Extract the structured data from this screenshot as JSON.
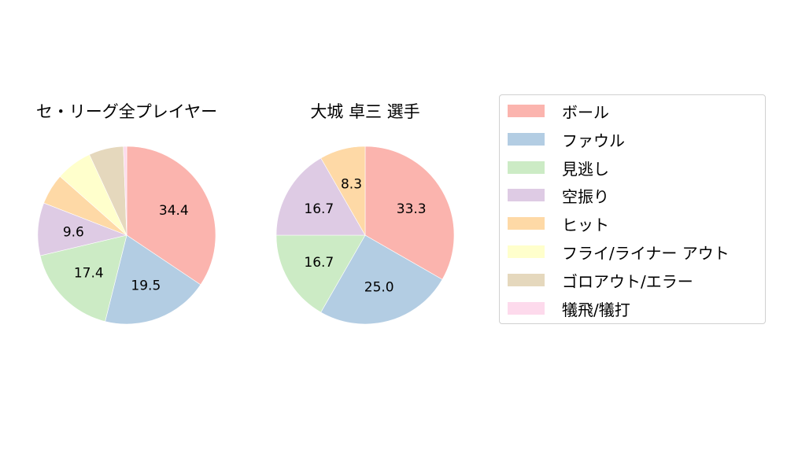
{
  "chart_data": [
    {
      "type": "pie",
      "title": "セ・リーグ全プレイヤー",
      "categories": [
        "ボール",
        "ファウル",
        "見逃し",
        "空振り",
        "ヒット",
        "フライ/ライナー アウト",
        "ゴロアウト/エラー",
        "犠飛/犠打"
      ],
      "values": [
        34.4,
        19.5,
        17.4,
        9.6,
        5.6,
        6.6,
        6.3,
        0.6
      ],
      "labels_shown": [
        "34.4",
        "19.5",
        "17.4",
        "9.6",
        "",
        "",
        "",
        ""
      ],
      "colors": [
        "#fbb4ae",
        "#b3cde3",
        "#ccebc5",
        "#decbe4",
        "#fed9a6",
        "#ffffcc",
        "#e5d8bd",
        "#fddaec"
      ],
      "start_angle": 90,
      "direction": "clockwise"
    },
    {
      "type": "pie",
      "title": "大城 卓三  選手",
      "categories": [
        "ボール",
        "ファウル",
        "見逃し",
        "空振り",
        "ヒット",
        "フライ/ライナー アウト",
        "ゴロアウト/エラー",
        "犠飛/犠打"
      ],
      "values": [
        33.3,
        25.0,
        16.7,
        16.7,
        8.3,
        0,
        0,
        0
      ],
      "labels_shown": [
        "33.3",
        "25.0",
        "16.7",
        "16.7",
        "8.3",
        "",
        "",
        ""
      ],
      "colors": [
        "#fbb4ae",
        "#b3cde3",
        "#ccebc5",
        "#decbe4",
        "#fed9a6",
        "#ffffcc",
        "#e5d8bd",
        "#fddaec"
      ],
      "start_angle": 90,
      "direction": "clockwise"
    }
  ],
  "titles": {
    "left": "セ・リーグ全プレイヤー",
    "right": "大城 卓三  選手"
  },
  "legend": {
    "position": "right",
    "items": [
      {
        "label": "ボール",
        "color": "#fbb4ae"
      },
      {
        "label": "ファウル",
        "color": "#b3cde3"
      },
      {
        "label": "見逃し",
        "color": "#ccebc5"
      },
      {
        "label": "空振り",
        "color": "#decbe4"
      },
      {
        "label": "ヒット",
        "color": "#fed9a6"
      },
      {
        "label": "フライ/ライナー アウト",
        "color": "#ffffcc"
      },
      {
        "label": "ゴロアウト/エラー",
        "color": "#e5d8bd"
      },
      {
        "label": "犠飛/犠打",
        "color": "#fddaec"
      }
    ]
  }
}
